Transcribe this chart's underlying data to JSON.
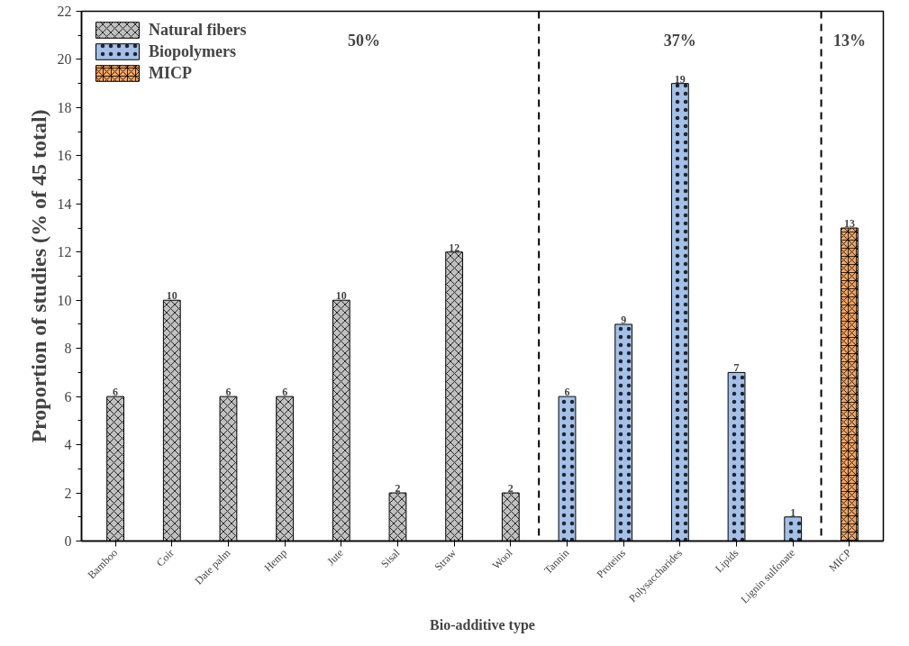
{
  "chart_data": {
    "type": "bar",
    "xlabel": "Bio-additive type",
    "ylabel": "Proportion of studies (% of 45 total)",
    "categories": [
      "Bamboo",
      "Coir",
      "Date palm",
      "Hemp",
      "Jute",
      "Sisal",
      "Straw",
      "Wool",
      "Tannin",
      "Proteins",
      "Polysaccharides",
      "Lipids",
      "Lignin sulfonate",
      "MICP"
    ],
    "series": [
      {
        "name": "Natural fibers",
        "color": "#c0c0c0",
        "values": [
          6,
          10,
          6,
          6,
          10,
          2,
          12,
          2,
          null,
          null,
          null,
          null,
          null,
          null
        ]
      },
      {
        "name": "Biopolymers",
        "color": "#a4c0e8",
        "values": [
          null,
          null,
          null,
          null,
          null,
          null,
          null,
          null,
          6,
          9,
          19,
          7,
          1,
          null
        ]
      },
      {
        "name": "MICP",
        "color": "#f4a460",
        "values": [
          null,
          null,
          null,
          null,
          null,
          null,
          null,
          null,
          null,
          null,
          null,
          null,
          null,
          13
        ]
      }
    ],
    "ylim": [
      0,
      22
    ],
    "yticks": [
      0,
      2,
      4,
      6,
      8,
      10,
      12,
      14,
      16,
      18,
      20,
      22
    ],
    "data_labels": true,
    "legend": "top left",
    "grid": false,
    "annotations": [
      "50%",
      "37%",
      "13%"
    ]
  }
}
